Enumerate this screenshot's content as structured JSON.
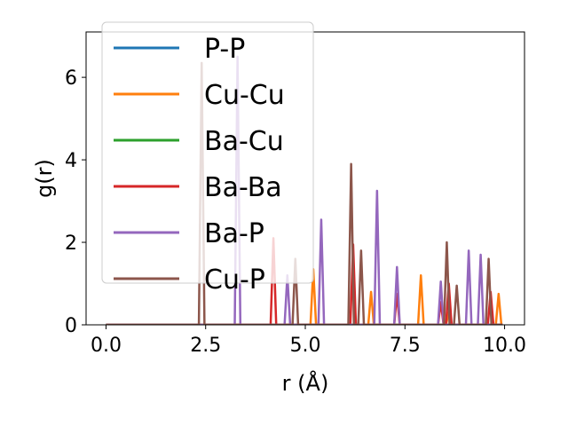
{
  "chart_data": {
    "type": "line",
    "title": "",
    "xlabel": "r (Å)",
    "ylabel": "g(r)",
    "xlim": [
      -0.5,
      10.5
    ],
    "ylim": [
      0,
      7.1
    ],
    "xticks": [
      0.0,
      2.5,
      5.0,
      7.5,
      10.0
    ],
    "xtick_labels": [
      "0.0",
      "2.5",
      "5.0",
      "7.5",
      "10.0"
    ],
    "yticks": [
      0,
      2,
      4,
      6
    ],
    "ytick_labels": [
      "0",
      "2",
      "4",
      "6"
    ],
    "grid": false,
    "legend_position": "upper-left",
    "series": [
      {
        "name": "P-P",
        "color": "#1f77b4",
        "peaks": []
      },
      {
        "name": "Cu-Cu",
        "color": "#ff7f0e",
        "peaks": [
          [
            5.2,
            1.35
          ],
          [
            6.65,
            0.8
          ],
          [
            7.9,
            1.2
          ],
          [
            8.6,
            0.3
          ],
          [
            9.85,
            0.75
          ]
        ]
      },
      {
        "name": "Ba-Cu",
        "color": "#2ca02c",
        "peaks": []
      },
      {
        "name": "Ba-Ba",
        "color": "#d62728",
        "peaks": [
          [
            4.2,
            2.1
          ],
          [
            6.2,
            1.95
          ],
          [
            7.3,
            0.75
          ],
          [
            8.4,
            0.55
          ],
          [
            8.6,
            1.0
          ],
          [
            9.65,
            0.8
          ]
        ]
      },
      {
        "name": "Ba-P",
        "color": "#9467bd",
        "peaks": [
          [
            3.3,
            6.5
          ],
          [
            4.55,
            1.2
          ],
          [
            5.4,
            2.55
          ],
          [
            6.8,
            3.25
          ],
          [
            7.3,
            1.4
          ],
          [
            8.4,
            1.05
          ],
          [
            9.1,
            1.8
          ],
          [
            9.4,
            1.7
          ]
        ]
      },
      {
        "name": "Cu-P",
        "color": "#8c564b",
        "peaks": [
          [
            2.4,
            6.35
          ],
          [
            4.75,
            1.6
          ],
          [
            6.15,
            3.9
          ],
          [
            6.4,
            1.8
          ],
          [
            8.55,
            2.0
          ],
          [
            8.8,
            0.95
          ],
          [
            9.6,
            1.6
          ]
        ]
      }
    ]
  }
}
